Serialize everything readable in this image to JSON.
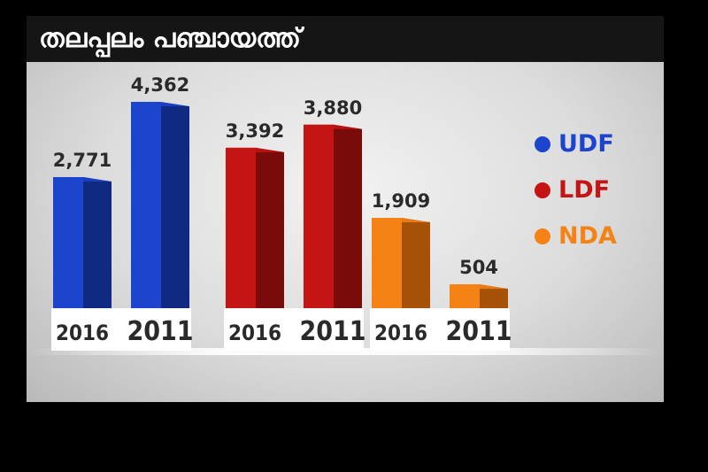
{
  "title": "തലപ്പലം പഞ്ചായത്ത്",
  "colors": {
    "UDF": "#1c44cc",
    "UDF_side": "#0f2a80",
    "LDF": "#c41414",
    "LDF_side": "#7a0b0b",
    "NDA": "#f58214",
    "NDA_side": "#a55208"
  },
  "legend": [
    {
      "label": "UDF",
      "color": "#1c44cc"
    },
    {
      "label": "LDF",
      "color": "#c41414"
    },
    {
      "label": "NDA",
      "color": "#f58214"
    }
  ],
  "chart_data": {
    "type": "bar",
    "categories": [
      "UDF",
      "LDF",
      "NDA"
    ],
    "series": [
      {
        "name": "2016",
        "values": [
          2771,
          3392,
          1909
        ],
        "labels": [
          "2,771",
          "3,392",
          "1,909"
        ]
      },
      {
        "name": "2011",
        "values": [
          4362,
          3880,
          504
        ],
        "labels": [
          "4,362",
          "3,880",
          "504"
        ]
      }
    ],
    "ylim": [
      0,
      4900
    ],
    "grid": false,
    "legend_position": "right"
  }
}
